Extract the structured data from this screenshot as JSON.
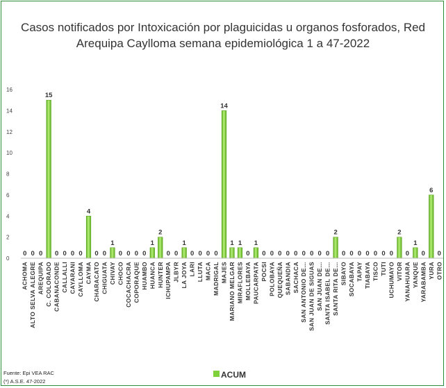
{
  "chart_data": {
    "type": "bar",
    "title_line1": "Casos notificados por Intoxicación por plaguicidas u organos fosforados, Red",
    "title_line2": "Arequipa Caylloma  semana epidemiológica 1 a 47-2022",
    "categories": [
      "ACHOMA",
      "ALTO SELVA ALEGRE",
      "AREQUIPA",
      "C. COLORADO",
      "CABANACONDE",
      "CALLALLI",
      "CAYARANI",
      "CAYLLOMA",
      "CAYMA",
      "CHARACATO",
      "CHIGUATA",
      "CHIVAY",
      "CHOCO",
      "COCACHACRA",
      "COPORAQUE",
      "HUAMBO",
      "HUANCA",
      "HUNTER",
      "ICHUPAMPA",
      "JLBYR",
      "LA JOYA",
      "LARI",
      "LLUTA",
      "MACA",
      "MADRIGAL",
      "MAJES",
      "MARIANO MELGAR",
      "MIRAFLORES",
      "MOLLEBAYA",
      "PAUCARPATA",
      "POCSI",
      "POLOBAYA",
      "QUEQUEÑA",
      "SABANDIA",
      "SACHACA",
      "SAN ANTONIO DE…",
      "SAN JUAN DE SIGUAS",
      "SAN JUAN DE…",
      "SANTA ISABEL DE…",
      "SANTA RITA DE…",
      "SIBAYO",
      "SOCABAYA",
      "TAPAY",
      "TIABAYA",
      "TISCO",
      "TUTI",
      "UCHUMAYO",
      "VITOR",
      "YANAHUARA",
      "YANQUE",
      "YARABAMBA",
      "YURA",
      "OTRO"
    ],
    "series": [
      {
        "name": "ACUM",
        "values": [
          0,
          0,
          0,
          15,
          0,
          0,
          0,
          0,
          4,
          0,
          0,
          1,
          0,
          0,
          0,
          0,
          1,
          2,
          0,
          0,
          1,
          0,
          0,
          0,
          0,
          14,
          1,
          1,
          0,
          1,
          0,
          0,
          0,
          0,
          0,
          0,
          0,
          0,
          0,
          2,
          0,
          0,
          0,
          0,
          0,
          0,
          0,
          2,
          0,
          1,
          0,
          6,
          0
        ]
      }
    ],
    "ylim": [
      0,
      16
    ],
    "yticks": [
      "0",
      "2",
      "4",
      "6",
      "8",
      "10",
      "12",
      "14",
      "16"
    ],
    "grid": false,
    "legend": "bottom",
    "bar_color": "#7fd13b"
  },
  "footer": {
    "source": "Fuente: Epi VEA RAC",
    "note": "(*) A.S.E. 47-2022"
  }
}
